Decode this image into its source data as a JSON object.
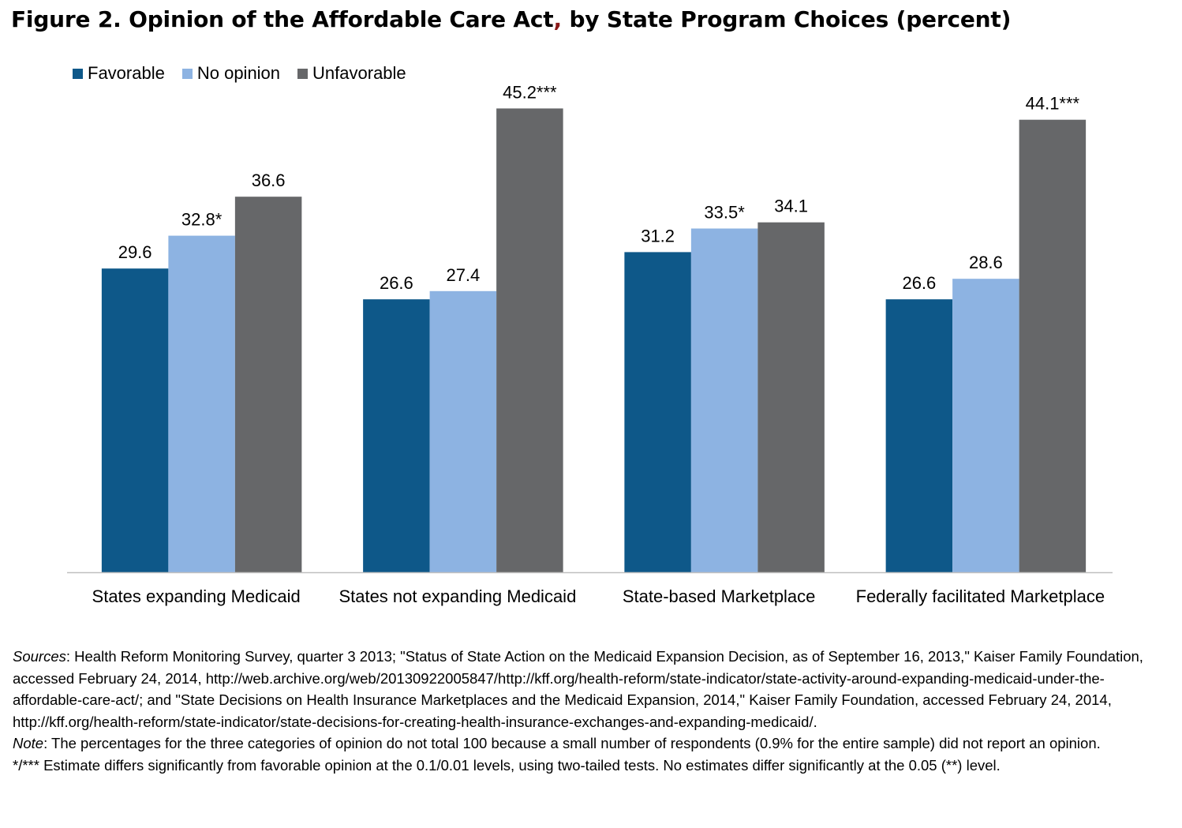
{
  "title": {
    "main": "Figure 2. Opinion of the Affordable Care Act",
    "comma": ",",
    "rest": " by State Program Choices (percent)"
  },
  "colors": {
    "favorable": "#0e5889",
    "no_opinion": "#8db3e2",
    "unfavorable": "#666769",
    "title_comma": "#8b1a1a"
  },
  "chart_data": {
    "type": "bar",
    "categories": [
      "States expanding Medicaid",
      "States not expanding Medicaid",
      "State-based Marketplace",
      "Federally facilitated Marketplace"
    ],
    "series": [
      {
        "name": "Favorable",
        "values": [
          29.6,
          26.6,
          31.2,
          26.6
        ],
        "labels": [
          "29.6",
          "26.6",
          "31.2",
          "26.6"
        ]
      },
      {
        "name": "No opinion",
        "values": [
          32.8,
          27.4,
          33.5,
          28.6
        ],
        "labels": [
          "32.8*",
          "27.4",
          "33.5*",
          "28.6"
        ]
      },
      {
        "name": "Unfavorable",
        "values": [
          36.6,
          45.2,
          34.1,
          44.1
        ],
        "labels": [
          "36.6",
          "45.2***",
          "34.1",
          "44.1***"
        ]
      }
    ],
    "ylim": [
      0,
      50
    ],
    "grid": false,
    "legend": "top-left"
  },
  "footnotes": {
    "sources_label": "Sources",
    "sources_text": ": Health Reform Monitoring Survey, quarter 3 2013; \"Status of State Action on the Medicaid Expansion Decision, as of September 16, 2013,\" Kaiser Family Foundation, accessed February 24, 2014, http://web.archive.org/web/20130922005847/http://kff.org/health-reform/state-indicator/state-activity-around-expanding-medicaid-under-the-affordable-care-act/; and \"State Decisions on Health Insurance Marketplaces and the Medicaid Expansion, 2014,\" Kaiser Family Foundation, accessed February 24, 2014, http://kff.org/health-reform/state-indicator/state-decisions-for-creating-health-insurance-exchanges-and-expanding-medicaid/.",
    "note_label": "Note",
    "note_text": ": The percentages for the three categories of opinion do not total 100 because a small number of respondents (0.9% for the entire sample) did not report an opinion.",
    "significance": "*/*** Estimate differs significantly from favorable opinion at the 0.1/0.01 levels, using two-tailed tests. No estimates differ significantly at the 0.05 (**) level."
  }
}
